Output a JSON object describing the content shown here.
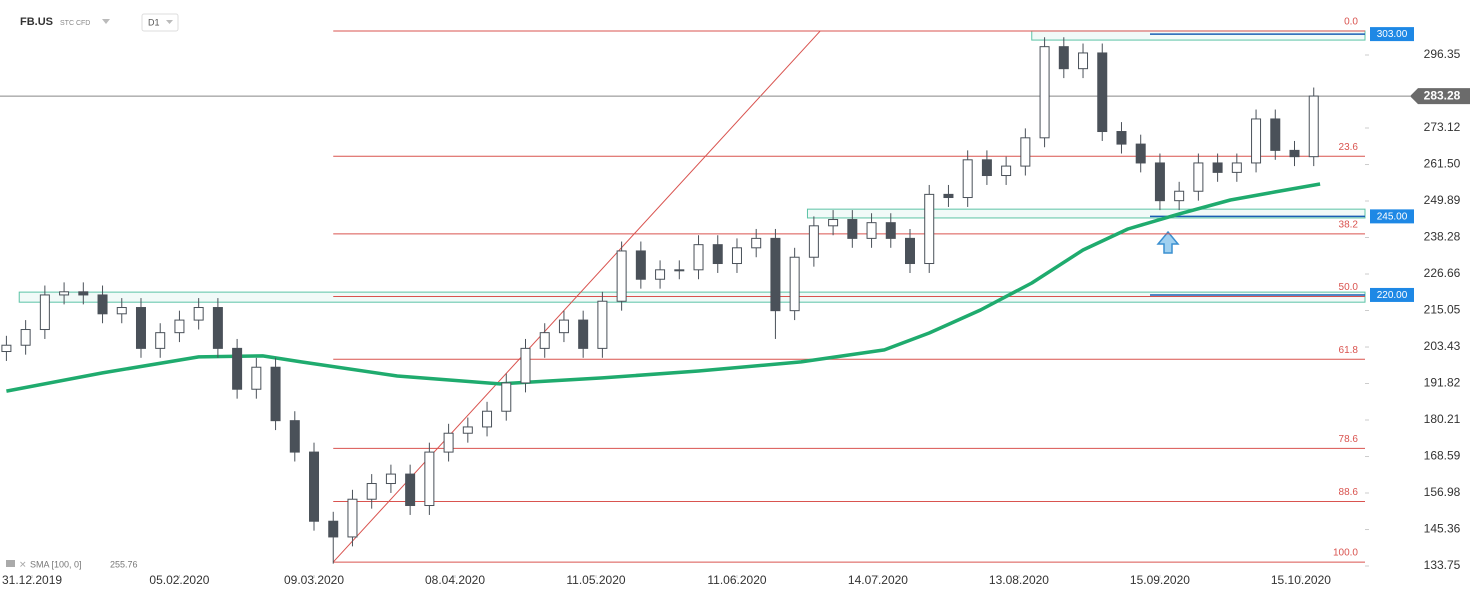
{
  "chart_data": {
    "type": "candlestick",
    "symbol": "FB.US",
    "instrument": "STC CFD",
    "interval": "D1",
    "indicator_label": "SMA [100, 0]",
    "indicator_value": 255.76,
    "last_price": 283.28,
    "xlim": [
      -1,
      212
    ],
    "ylim": [
      130.89,
      313.85
    ],
    "xticks": [
      {
        "value": 4,
        "label": "31.12.2019"
      },
      {
        "value": 27,
        "label": "05.02.2020"
      },
      {
        "value": 48,
        "label": "09.03.2020"
      },
      {
        "value": 70,
        "label": "08.04.2020"
      },
      {
        "value": 92,
        "label": "11.05.2020"
      },
      {
        "value": 114,
        "label": "11.06.2020"
      },
      {
        "value": 136,
        "label": "14.07.2020"
      },
      {
        "value": 158,
        "label": "13.08.2020"
      },
      {
        "value": 180,
        "label": "15.09.2020"
      },
      {
        "value": 202,
        "label": "15.10.2020"
      }
    ],
    "yticks": [
      296.35,
      273.12,
      {
        "value": 261.5,
        "label": "261.50"
      },
      249.89,
      238.28,
      226.66,
      215.05,
      203.43,
      191.82,
      180.21,
      168.59,
      156.98,
      145.36,
      133.75
    ],
    "candles": {
      "x": [
        0,
        3,
        6,
        9,
        12,
        15,
        18,
        21,
        24,
        27,
        30,
        33,
        36,
        39,
        42,
        45,
        48,
        51,
        54,
        57,
        60,
        63,
        66,
        69,
        72,
        75,
        78,
        81,
        84,
        87,
        90,
        93,
        96,
        99,
        102,
        105,
        108,
        111,
        114,
        117,
        120,
        123,
        126,
        129,
        132,
        135,
        138,
        141,
        144,
        147,
        150,
        153,
        156,
        159,
        162,
        165,
        168,
        171,
        174,
        177,
        180,
        183,
        186,
        189,
        192,
        195,
        198,
        201,
        204
      ],
      "open": [
        202,
        204,
        209,
        220,
        221,
        220,
        214,
        216,
        203,
        208,
        212,
        216,
        203,
        190,
        197,
        180,
        170,
        148,
        143,
        155,
        160,
        163,
        153,
        170,
        176,
        178,
        183,
        192,
        203,
        208,
        212,
        203,
        218,
        234,
        225,
        228,
        228,
        236,
        230,
        235,
        238,
        215,
        232,
        242,
        244,
        238,
        243,
        238,
        230,
        252,
        251,
        263,
        258,
        261,
        270,
        299,
        292,
        297,
        272,
        268,
        262,
        250,
        253,
        262,
        259,
        262,
        276,
        266,
        264
      ],
      "high": [
        207,
        212,
        223,
        224,
        224,
        223,
        219,
        219,
        211,
        215,
        219,
        219,
        206,
        200,
        200,
        183,
        173,
        151,
        158,
        163,
        166,
        166,
        173,
        179,
        181,
        186,
        195,
        206,
        211,
        215,
        215,
        221,
        237,
        237,
        231,
        231,
        239,
        239,
        238,
        241,
        241,
        235,
        245,
        247,
        247,
        246,
        246,
        241,
        255,
        255,
        266,
        266,
        264,
        273,
        302,
        302,
        300,
        300,
        275,
        271,
        265,
        256,
        265,
        265,
        265,
        279,
        279,
        269,
        286
      ],
      "low": [
        199,
        201,
        206,
        217,
        217,
        211,
        211,
        200,
        200,
        205,
        209,
        200,
        187,
        187,
        177,
        167,
        145,
        134.5,
        140,
        152,
        157,
        150,
        150,
        167,
        173,
        175,
        180,
        189,
        200,
        205,
        200,
        200,
        215,
        222,
        222,
        225,
        225,
        227,
        227,
        232,
        206,
        212,
        229,
        239,
        235,
        235,
        235,
        227,
        227,
        248,
        248,
        255,
        255,
        258,
        267,
        289,
        289,
        269,
        265,
        259,
        247,
        247,
        250,
        256,
        256,
        259,
        263,
        261,
        261
      ],
      "close": [
        204,
        209,
        220,
        221,
        220,
        214,
        216,
        203,
        208,
        212,
        216,
        203,
        190,
        197,
        180,
        170,
        148,
        143,
        155,
        160,
        163,
        153,
        170,
        176,
        178,
        183,
        192,
        203,
        208,
        212,
        203,
        218,
        234,
        225,
        228,
        228,
        236,
        230,
        235,
        238,
        215,
        232,
        242,
        244,
        238,
        243,
        238,
        230,
        252,
        251,
        263,
        258,
        261,
        270,
        299,
        292,
        297,
        272,
        268,
        262,
        250,
        253,
        262,
        259,
        262,
        276,
        266,
        264,
        283.28
      ]
    },
    "sma": {
      "color": "#1fab6e",
      "x": [
        0,
        15,
        30,
        40,
        46,
        61,
        77,
        93,
        108,
        124,
        137,
        144,
        152,
        160,
        168,
        175,
        183,
        191,
        198,
        205
      ],
      "values": [
        189.4,
        195.2,
        200.3,
        200.6,
        198.7,
        194.2,
        191.7,
        193.6,
        195.8,
        198.7,
        202.5,
        207.9,
        215.2,
        223.8,
        234.3,
        241.0,
        245.8,
        250.2,
        252.8,
        255.3
      ]
    },
    "fibonacci": {
      "color": "#d9534f",
      "high": 304,
      "low": 135,
      "x_start": 51,
      "levels": [
        {
          "value": 0,
          "label": "0.0"
        },
        23.6,
        38.2,
        {
          "value": 50,
          "label": "50.0"
        },
        61.8,
        78.6,
        88.6,
        {
          "value": 100,
          "label": "100.0"
        }
      ]
    },
    "trend_line": {
      "x": [
        51,
        127
      ],
      "values": [
        135,
        304
      ]
    },
    "zones": [
      {
        "level": {
          "value": 303,
          "label": "303.00"
        },
        "top": 304,
        "bottom": 301.1,
        "x_start": 160
      },
      {
        "level": {
          "value": 245,
          "label": "245.00"
        },
        "top": 247.3,
        "bottom": 244.5,
        "x_start": 125
      },
      {
        "level": {
          "value": 220,
          "label": "220.00"
        },
        "top": 220.9,
        "bottom": 217.7,
        "x_start": 2
      }
    ]
  }
}
